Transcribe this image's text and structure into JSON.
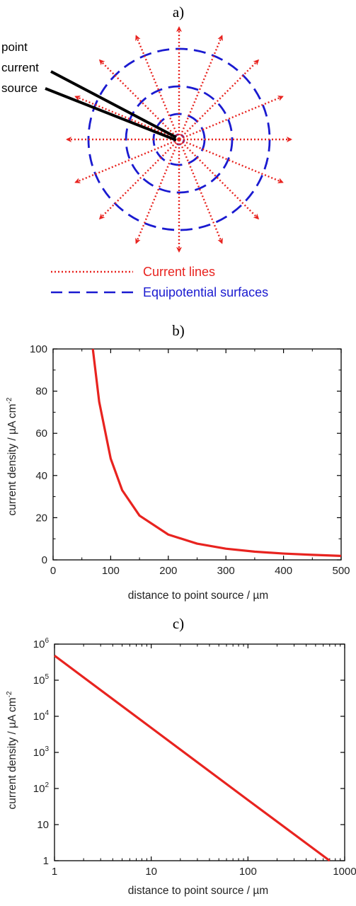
{
  "panels": {
    "a": {
      "label": "a)",
      "source_label": [
        "point",
        "current",
        "source"
      ],
      "legend": [
        {
          "text": "Current lines",
          "color": "#e8231f",
          "style": "dotted"
        },
        {
          "text": "Equipotential surfaces",
          "color": "#1a1ad0",
          "style": "dashed"
        }
      ],
      "current_line_count": 16,
      "equipotential_count": 4
    },
    "b": {
      "label": "b)"
    },
    "c": {
      "label": "c)"
    }
  },
  "colors": {
    "current": "#e8231f",
    "equipotential": "#1a1ad0",
    "curve": "#e8231f",
    "axis": "#000000"
  },
  "chart_data": [
    {
      "type": "line",
      "xlabel": "distance to point source / µm",
      "ylabel_main": "current density / µA cm",
      "ylabel_sup": "-2",
      "xlim": [
        0,
        500
      ],
      "ylim": [
        0,
        100
      ],
      "xticks": [
        0,
        100,
        200,
        300,
        400,
        500
      ],
      "xtick_labels": [
        "0",
        "100",
        "200",
        "300",
        "400",
        "500"
      ],
      "yticks": [
        0,
        20,
        40,
        60,
        80,
        100
      ],
      "ytick_labels": [
        "0",
        "20",
        "40",
        "60",
        "80",
        "100"
      ],
      "x": [
        69,
        80,
        100,
        120,
        150,
        200,
        250,
        300,
        350,
        400,
        450,
        500
      ],
      "y": [
        100,
        75,
        48,
        33,
        21,
        12,
        7.7,
        5.3,
        3.9,
        3.0,
        2.4,
        1.9
      ],
      "legend": "none"
    },
    {
      "type": "line",
      "xlabel": "distance to point source / µm",
      "ylabel_main": "current density / µA cm",
      "ylabel_sup": "-2",
      "xscale": "log",
      "yscale": "log",
      "xlim": [
        1,
        1000
      ],
      "ylim": [
        1,
        1000000
      ],
      "xticks": [
        1,
        10,
        100,
        1000
      ],
      "xtick_labels": [
        "1",
        "10",
        "100",
        "1000"
      ],
      "yticks": [
        1,
        10,
        100,
        1000,
        10000,
        100000,
        1000000
      ],
      "ytick_labels": [
        {
          "base": "1",
          "exp": ""
        },
        {
          "base": "10",
          "exp": ""
        },
        {
          "base": "10",
          "exp": "2"
        },
        {
          "base": "10",
          "exp": "3"
        },
        {
          "base": "10",
          "exp": "4"
        },
        {
          "base": "10",
          "exp": "5"
        },
        {
          "base": "10",
          "exp": "6"
        }
      ],
      "x": [
        1,
        10,
        100,
        700
      ],
      "y": [
        480000,
        4800,
        48,
        1
      ],
      "legend": "none"
    }
  ]
}
